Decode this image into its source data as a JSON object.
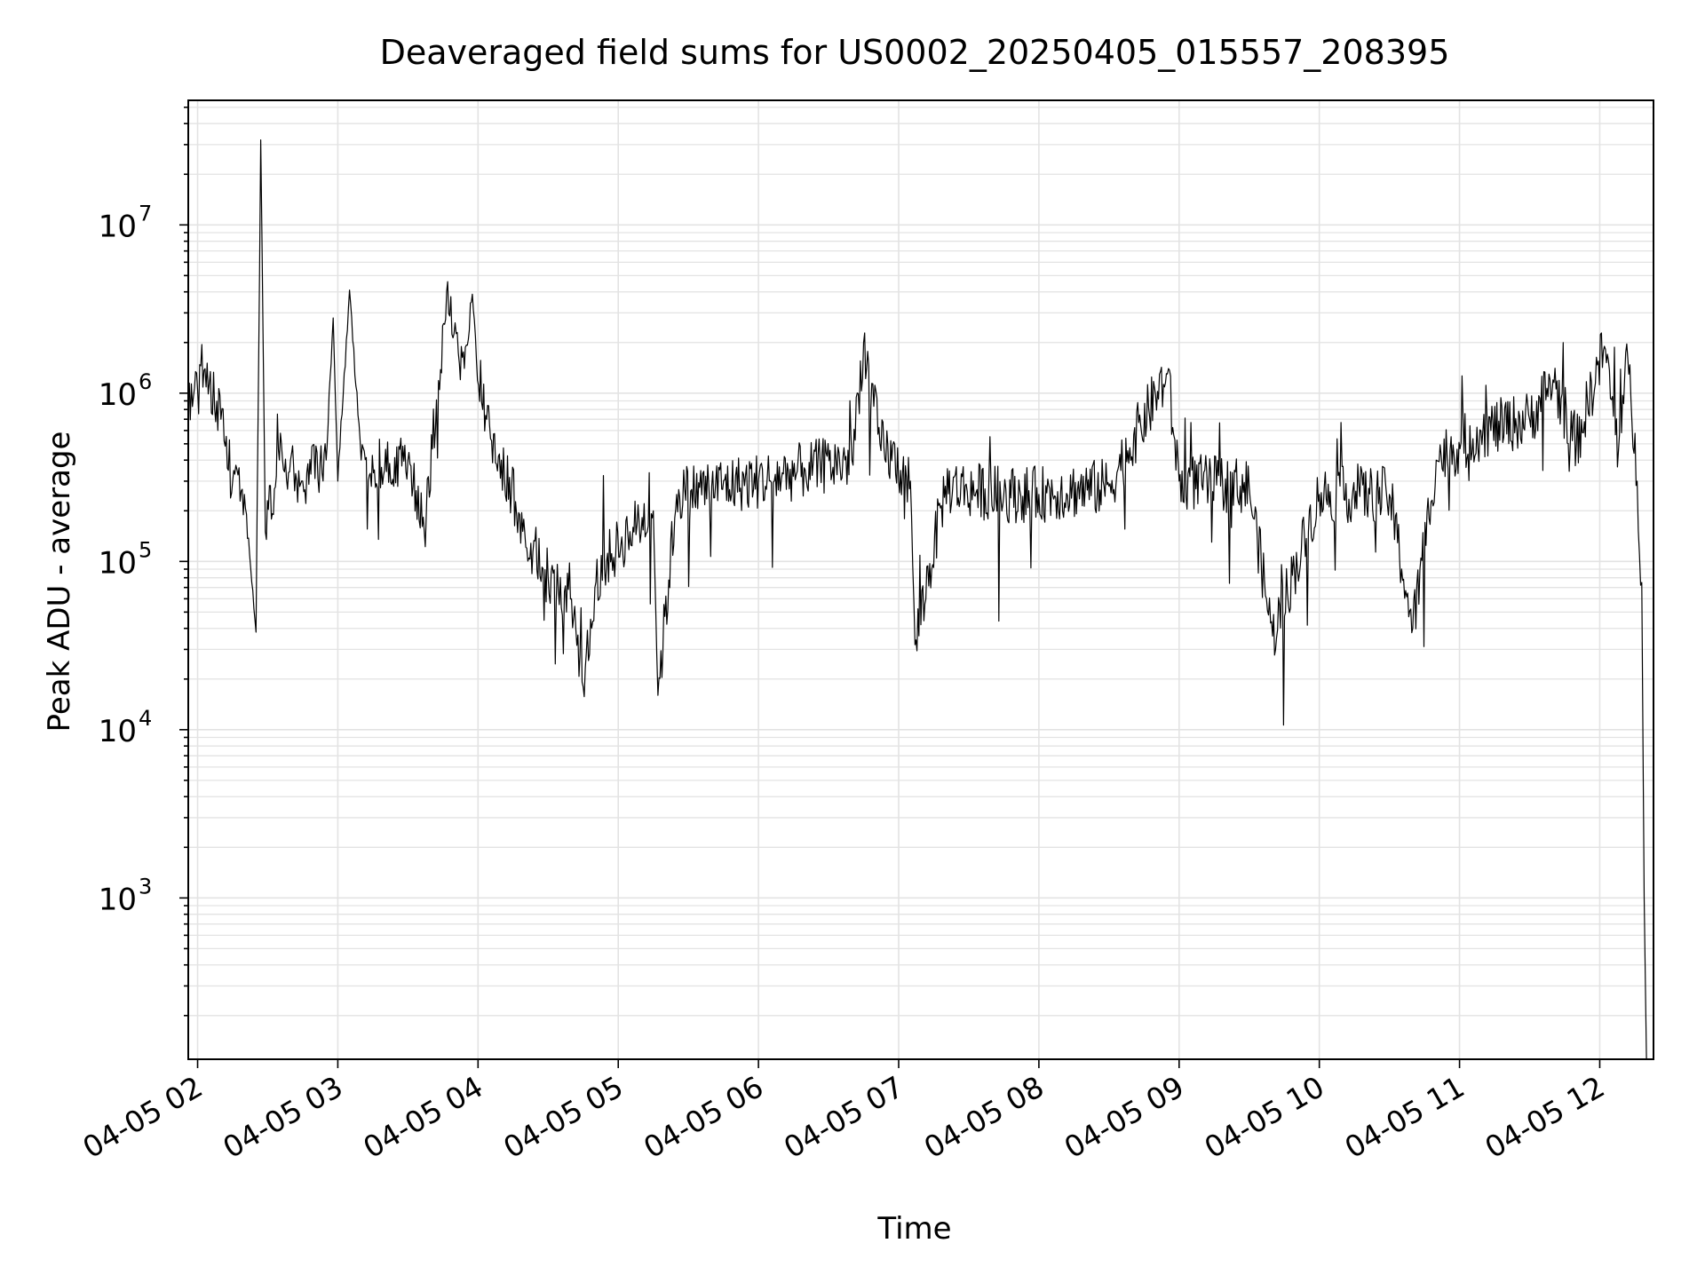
{
  "chart_data": {
    "type": "line",
    "title": "Deaveraged field sums for US0002_20250405_015557_208395",
    "xlabel": "Time",
    "ylabel": "Peak ADU - average",
    "y_scale": "log",
    "grid": "on",
    "line_color": "#000000",
    "grid_color": "#e3e3e3",
    "xlim": [
      "2025-04-05 01:56",
      "2025-04-05 12:23"
    ],
    "ylim": [
      110,
      55000000
    ],
    "x_ticks": [
      {
        "value": "2025-04-05 02:00",
        "label": "04-05 02"
      },
      {
        "value": "2025-04-05 03:00",
        "label": "04-05 03"
      },
      {
        "value": "2025-04-05 04:00",
        "label": "04-05 04"
      },
      {
        "value": "2025-04-05 05:00",
        "label": "04-05 05"
      },
      {
        "value": "2025-04-05 06:00",
        "label": "04-05 06"
      },
      {
        "value": "2025-04-05 07:00",
        "label": "04-05 07"
      },
      {
        "value": "2025-04-05 08:00",
        "label": "04-05 08"
      },
      {
        "value": "2025-04-05 09:00",
        "label": "04-05 09"
      },
      {
        "value": "2025-04-05 10:00",
        "label": "04-05 10"
      },
      {
        "value": "2025-04-05 11:00",
        "label": "04-05 11"
      },
      {
        "value": "2025-04-05 12:00",
        "label": "04-05 12"
      }
    ],
    "y_ticks": [
      {
        "value": 1000,
        "base": "10",
        "exp": "3"
      },
      {
        "value": 10000,
        "base": "10",
        "exp": "4"
      },
      {
        "value": 100000,
        "base": "10",
        "exp": "5"
      },
      {
        "value": 1000000,
        "base": "10",
        "exp": "6"
      },
      {
        "value": 10000000,
        "base": "10",
        "exp": "7"
      }
    ],
    "series": [
      {
        "points": [
          [
            "2025-04-05 01:56",
            900000
          ],
          [
            "2025-04-05 02:00",
            1050000
          ],
          [
            "2025-04-05 02:05",
            1150000
          ],
          [
            "2025-04-05 02:10",
            700000
          ],
          [
            "2025-04-05 02:15",
            300000
          ],
          [
            "2025-04-05 02:20",
            250000
          ],
          [
            "2025-04-05 02:25",
            38000
          ],
          [
            "2025-04-05 02:27",
            32000000
          ],
          [
            "2025-04-05 02:29",
            150000
          ],
          [
            "2025-04-05 02:35",
            400000
          ],
          [
            "2025-04-05 02:45",
            300000
          ],
          [
            "2025-04-05 02:55",
            400000
          ],
          [
            "2025-04-05 02:58",
            2800000
          ],
          [
            "2025-04-05 03:00",
            300000
          ],
          [
            "2025-04-05 03:05",
            4100000
          ],
          [
            "2025-04-05 03:10",
            400000
          ],
          [
            "2025-04-05 03:20",
            350000
          ],
          [
            "2025-04-05 03:30",
            400000
          ],
          [
            "2025-04-05 03:37",
            150000
          ],
          [
            "2025-04-05 03:47",
            4600000
          ],
          [
            "2025-04-05 03:52",
            1500000
          ],
          [
            "2025-04-05 03:58",
            3100000
          ],
          [
            "2025-04-05 04:02",
            800000
          ],
          [
            "2025-04-05 04:10",
            400000
          ],
          [
            "2025-04-05 04:20",
            150000
          ],
          [
            "2025-04-05 04:30",
            80000
          ],
          [
            "2025-04-05 04:40",
            60000
          ],
          [
            "2025-04-05 04:45",
            18000
          ],
          [
            "2025-04-05 04:50",
            70000
          ],
          [
            "2025-04-05 04:55",
            100000
          ],
          [
            "2025-04-05 05:05",
            150000
          ],
          [
            "2025-04-05 05:15",
            200000
          ],
          [
            "2025-04-05 05:17",
            16000
          ],
          [
            "2025-04-05 05:25",
            250000
          ],
          [
            "2025-04-05 05:40",
            280000
          ],
          [
            "2025-04-05 06:00",
            300000
          ],
          [
            "2025-04-05 06:20",
            350000
          ],
          [
            "2025-04-05 06:40",
            400000
          ],
          [
            "2025-04-05 06:45",
            2000000
          ],
          [
            "2025-04-05 06:52",
            500000
          ],
          [
            "2025-04-05 07:05",
            300000
          ],
          [
            "2025-04-05 07:07",
            32000
          ],
          [
            "2025-04-05 07:20",
            280000
          ],
          [
            "2025-04-05 07:45",
            250000
          ],
          [
            "2025-04-05 08:00",
            250000
          ],
          [
            "2025-04-05 08:30",
            280000
          ],
          [
            "2025-04-05 08:55",
            1300000
          ],
          [
            "2025-04-05 09:00",
            300000
          ],
          [
            "2025-04-05 09:30",
            280000
          ],
          [
            "2025-04-05 09:40",
            36000
          ],
          [
            "2025-04-05 10:00",
            250000
          ],
          [
            "2025-04-05 10:30",
            250000
          ],
          [
            "2025-04-05 10:40",
            40000
          ],
          [
            "2025-04-05 10:50",
            400000
          ],
          [
            "2025-04-05 11:10",
            600000
          ],
          [
            "2025-04-05 11:30",
            700000
          ],
          [
            "2025-04-05 11:40",
            1200000
          ],
          [
            "2025-04-05 11:50",
            500000
          ],
          [
            "2025-04-05 12:02",
            1900000
          ],
          [
            "2025-04-05 12:08",
            450000
          ],
          [
            "2025-04-05 12:12",
            1600000
          ],
          [
            "2025-04-05 12:16",
            300000
          ],
          [
            "2025-04-05 12:18",
            75000
          ],
          [
            "2025-04-05 12:19",
            1000
          ],
          [
            "2025-04-05 12:20",
            110
          ]
        ]
      }
    ]
  }
}
